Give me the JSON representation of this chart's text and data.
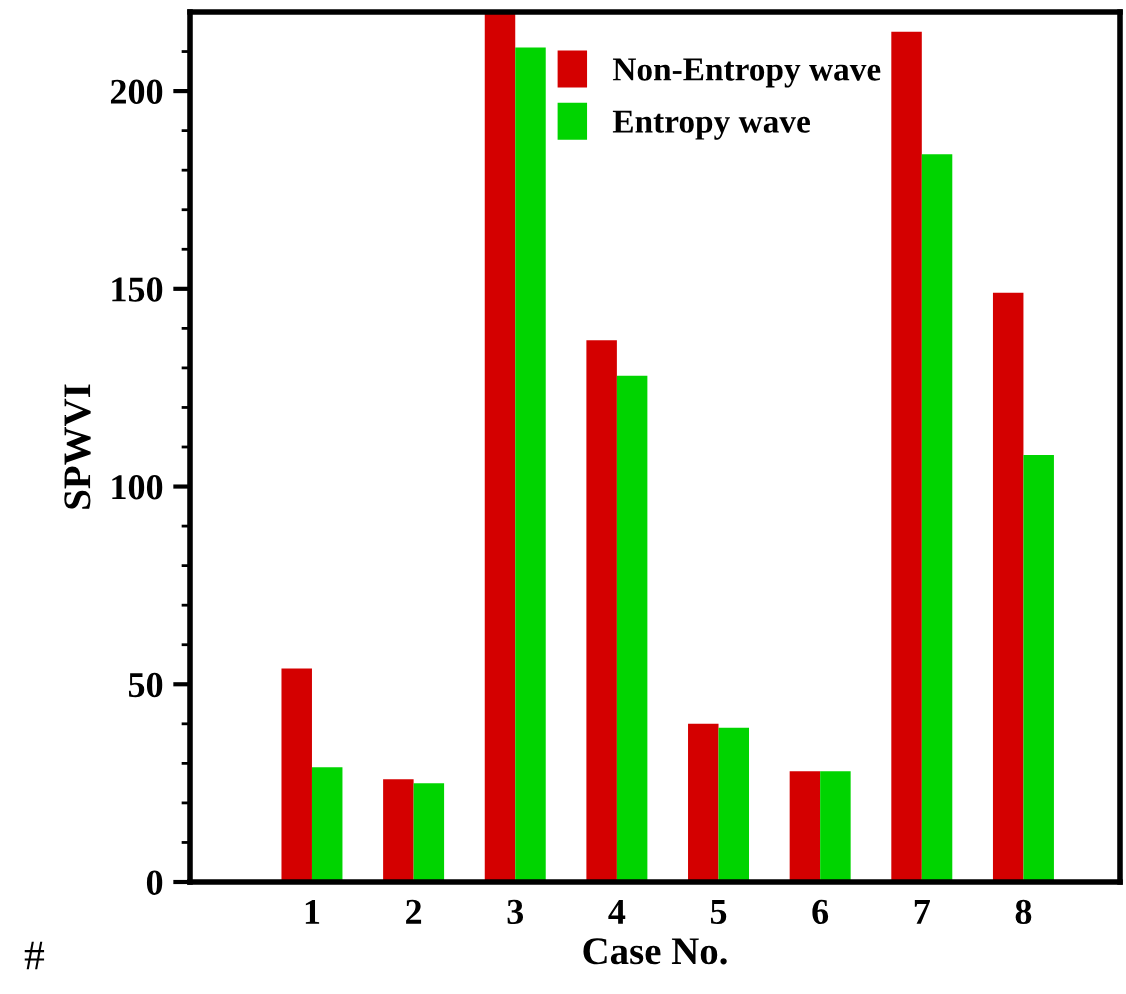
{
  "chart_data": {
    "type": "bar",
    "xlabel": "Case No.",
    "ylabel": "SPWVI",
    "x": [
      1,
      2,
      3,
      4,
      5,
      6,
      7,
      8
    ],
    "xlim": [
      -0.2,
      8.95
    ],
    "xticks": [
      1,
      2,
      3,
      4,
      5,
      6,
      7,
      8
    ],
    "ylim": [
      0,
      220
    ],
    "yticks": [
      0,
      {
        "value": 10,
        "label": null
      },
      {
        "value": 20,
        "label": null
      },
      {
        "value": 30,
        "label": null
      },
      {
        "value": 40,
        "label": null
      },
      50,
      {
        "value": 60,
        "label": null
      },
      {
        "value": 70,
        "label": null
      },
      {
        "value": 80,
        "label": null
      },
      {
        "value": 90,
        "label": null
      },
      100,
      {
        "value": 110,
        "label": null
      },
      {
        "value": 120,
        "label": null
      },
      {
        "value": 130,
        "label": null
      },
      {
        "value": 140,
        "label": null
      },
      150,
      {
        "value": 160,
        "label": null
      },
      {
        "value": 170,
        "label": null
      },
      {
        "value": 180,
        "label": null
      },
      {
        "value": 190,
        "label": null
      },
      200,
      {
        "value": 210,
        "label": null
      }
    ],
    "series": [
      {
        "name": "Non-Entropy wave",
        "color": "#d40000",
        "values": [
          54,
          26,
          220,
          137,
          40,
          28,
          215,
          149
        ]
      },
      {
        "name": "Entropy wave",
        "color": "#00d400",
        "values": [
          29,
          25,
          211,
          128,
          39,
          28,
          184,
          108
        ]
      }
    ],
    "legend": "top",
    "grid": false,
    "annotations": [
      "#"
    ]
  }
}
